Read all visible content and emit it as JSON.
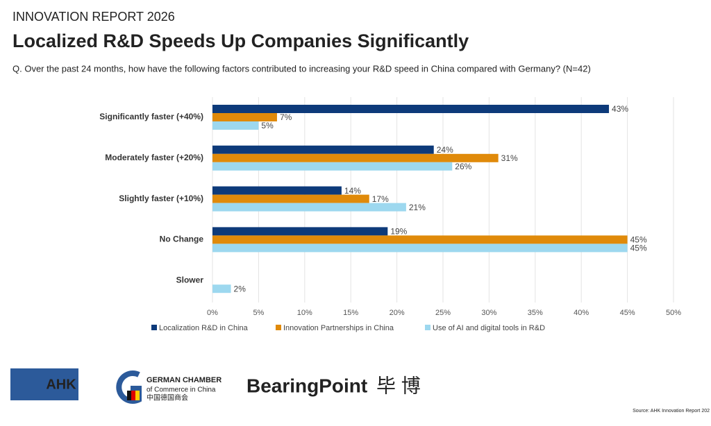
{
  "header": {
    "kicker": "INNOVATION REPORT 2026",
    "title": "Localized R&D Speeds Up Companies Significantly",
    "subtitle": "Q. Over the past 24 months, how have the following factors contributed to increasing your R&D speed in China compared with Germany? (N=42)"
  },
  "chart_data": {
    "type": "hbar",
    "categories": [
      "Significantly faster (+40%)",
      "Moderately faster (+20%)",
      "Slightly faster (+10%)",
      "No Change",
      "Slower"
    ],
    "series": [
      {
        "name": "Localization R&D in China",
        "color": "#0d3a7a",
        "values": [
          43,
          24,
          14,
          19,
          null
        ],
        "value_labels": [
          "43%",
          "24%",
          "14%",
          "19%",
          null
        ]
      },
      {
        "name": "Innovation Partnerships in China",
        "color": "#e08a0a",
        "values": [
          7,
          31,
          17,
          45,
          null
        ],
        "value_labels": [
          "7%",
          "31%",
          "17%",
          "45%",
          null
        ]
      },
      {
        "name": "Use of AI and digital tools in R&D",
        "color": "#9dd8ef",
        "values": [
          5,
          26,
          21,
          45,
          2
        ],
        "value_labels": [
          "5%",
          "26%",
          "21%",
          "45%",
          "2%"
        ]
      }
    ],
    "xlim": [
      0,
      50
    ],
    "xticks": [
      {
        "value": 0,
        "label": "0%"
      },
      {
        "value": 5,
        "label": "5%"
      },
      {
        "value": 10,
        "label": "10%"
      },
      {
        "value": 15,
        "label": "15%"
      },
      {
        "value": 20,
        "label": "20%"
      },
      {
        "value": 25,
        "label": "25%"
      },
      {
        "value": 30,
        "label": "30%"
      },
      {
        "value": 35,
        "label": "35%"
      },
      {
        "value": 40,
        "label": "40%"
      },
      {
        "value": 45,
        "label": "45%"
      },
      {
        "value": 50,
        "label": "50%"
      }
    ],
    "grid": true,
    "legend": "bottom"
  },
  "footer": {
    "ahk": "AHK",
    "chamber": "GERMAN CHAMBER",
    "chamber_sub": "of Commerce in China",
    "chamber_cn": "中国德国商会",
    "bearingpoint": "BearingPoint",
    "bearingpoint_cn": "毕 博",
    "source": "Source: AHK Innovation Report 202"
  }
}
